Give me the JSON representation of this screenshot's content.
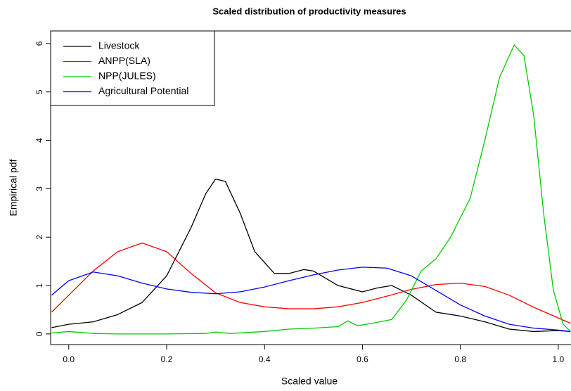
{
  "chart_data": {
    "type": "line",
    "title": "Scaled distribution of productivity measures",
    "xlabel": "Scaled value",
    "ylabel": "Empirical pdf",
    "xlim": [
      -0.037,
      1.026
    ],
    "ylim": [
      -0.22,
      6.26
    ],
    "xticks": [
      {
        "value": 0,
        "label": "0.0"
      },
      0.2,
      0.4,
      0.6,
      0.8,
      {
        "value": 1,
        "label": "1.0"
      }
    ],
    "yticks": [
      0,
      1,
      2,
      3,
      4,
      5,
      6
    ],
    "legend": "top-left",
    "series": [
      {
        "name": "Livestock",
        "color": "#000000",
        "x": [
          -0.035,
          0.0,
          0.05,
          0.1,
          0.15,
          0.2,
          0.25,
          0.28,
          0.3,
          0.32,
          0.35,
          0.38,
          0.42,
          0.45,
          0.48,
          0.5,
          0.55,
          0.6,
          0.63,
          0.66,
          0.7,
          0.75,
          0.8,
          0.85,
          0.9,
          0.95,
          1.0,
          1.025
        ],
        "values": [
          0.13,
          0.2,
          0.25,
          0.4,
          0.65,
          1.2,
          2.2,
          2.9,
          3.2,
          3.15,
          2.5,
          1.7,
          1.25,
          1.25,
          1.33,
          1.3,
          1.0,
          0.87,
          0.95,
          1.0,
          0.8,
          0.45,
          0.37,
          0.25,
          0.1,
          0.05,
          0.07,
          0.05
        ]
      },
      {
        "name": "ANPP(SLA)",
        "color": "#ff0000",
        "x": [
          -0.035,
          0.0,
          0.05,
          0.1,
          0.15,
          0.2,
          0.25,
          0.3,
          0.35,
          0.4,
          0.45,
          0.5,
          0.55,
          0.6,
          0.65,
          0.7,
          0.75,
          0.8,
          0.85,
          0.9,
          0.95,
          1.0,
          1.025
        ],
        "values": [
          0.45,
          0.8,
          1.3,
          1.7,
          1.88,
          1.7,
          1.25,
          0.85,
          0.65,
          0.56,
          0.52,
          0.52,
          0.56,
          0.65,
          0.78,
          0.92,
          1.02,
          1.05,
          0.98,
          0.8,
          0.55,
          0.33,
          0.22
        ]
      },
      {
        "name": "NPP(JULES)",
        "color": "#00cc00",
        "x": [
          -0.035,
          0.0,
          0.05,
          0.1,
          0.2,
          0.28,
          0.3,
          0.33,
          0.4,
          0.45,
          0.5,
          0.55,
          0.57,
          0.59,
          0.62,
          0.66,
          0.69,
          0.72,
          0.75,
          0.78,
          0.82,
          0.85,
          0.88,
          0.91,
          0.93,
          0.95,
          0.97,
          0.99,
          1.01,
          1.025
        ],
        "values": [
          0.02,
          0.05,
          0.01,
          0.0,
          0.0,
          0.01,
          0.04,
          0.01,
          0.05,
          0.1,
          0.12,
          0.15,
          0.27,
          0.17,
          0.22,
          0.3,
          0.7,
          1.3,
          1.55,
          2.0,
          2.8,
          4.0,
          5.3,
          5.97,
          5.75,
          4.5,
          2.5,
          0.9,
          0.2,
          0.05
        ]
      },
      {
        "name": "Agricultural Potential",
        "color": "#0000ff",
        "x": [
          -0.035,
          0.0,
          0.05,
          0.1,
          0.15,
          0.2,
          0.25,
          0.3,
          0.35,
          0.4,
          0.45,
          0.5,
          0.55,
          0.6,
          0.65,
          0.7,
          0.75,
          0.8,
          0.85,
          0.9,
          0.95,
          1.0,
          1.025
        ],
        "values": [
          0.8,
          1.1,
          1.28,
          1.2,
          1.05,
          0.93,
          0.86,
          0.83,
          0.87,
          0.97,
          1.1,
          1.22,
          1.32,
          1.38,
          1.36,
          1.2,
          0.9,
          0.6,
          0.37,
          0.2,
          0.12,
          0.08,
          0.05
        ]
      }
    ]
  }
}
